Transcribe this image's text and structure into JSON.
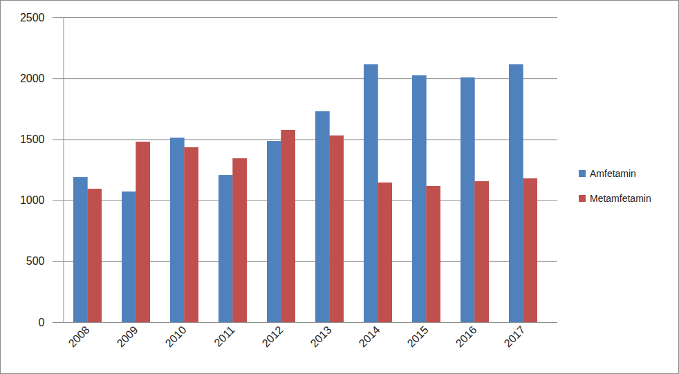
{
  "chart_data": {
    "type": "bar",
    "categories": [
      "2008",
      "2009",
      "2010",
      "2011",
      "2012",
      "2013",
      "2014",
      "2015",
      "2016",
      "2017"
    ],
    "series": [
      {
        "name": "Amfetamin",
        "color": "#4f81bd",
        "values": [
          1190,
          1071,
          1513,
          1207,
          1485,
          1729,
          2114,
          2024,
          2007,
          2114
        ]
      },
      {
        "name": "Metamfetamin",
        "color": "#c0504d",
        "values": [
          1094,
          1480,
          1434,
          1344,
          1576,
          1531,
          1145,
          1117,
          1156,
          1179
        ]
      }
    ],
    "ylim": [
      0,
      2500
    ],
    "yticks": [
      0,
      500,
      1000,
      1500,
      2000,
      2500
    ],
    "grid": true,
    "legend": "right"
  }
}
